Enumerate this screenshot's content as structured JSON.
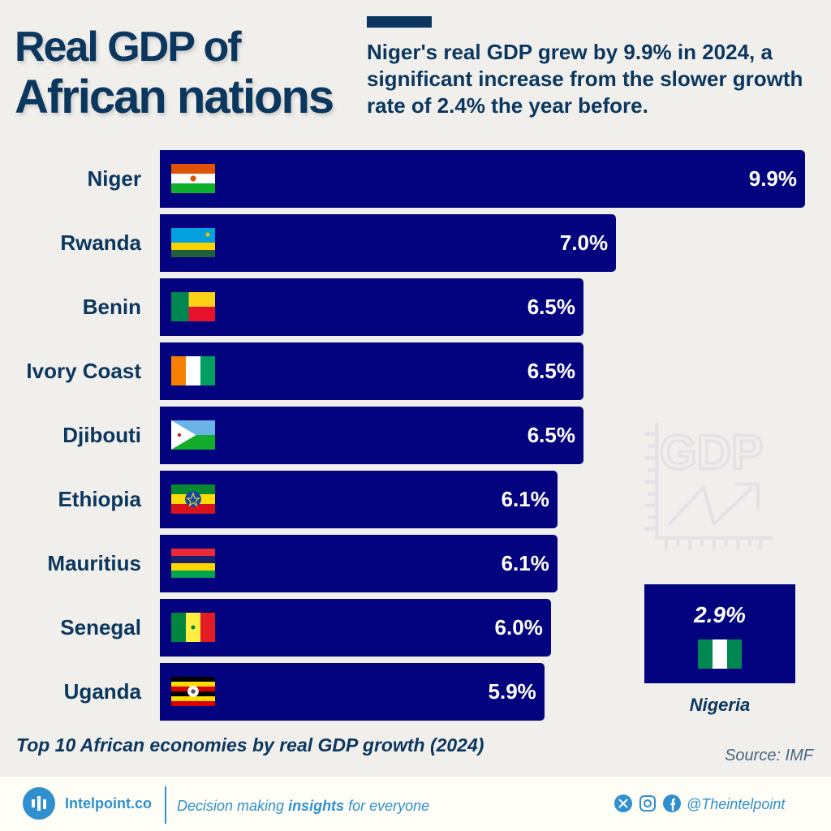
{
  "header": {
    "title_line1": "Real GDP of",
    "title_line2": "African nations",
    "subtitle": "Niger's real GDP grew by 9.9% in 2024, a significant increase from the slower growth rate of 2.4% the year before."
  },
  "chart_data": {
    "type": "bar",
    "orientation": "horizontal",
    "categories": [
      "Niger",
      "Rwanda",
      "Benin",
      "Ivory Coast",
      "Djibouti",
      "Ethiopia",
      "Mauritius",
      "Senegal",
      "Uganda"
    ],
    "values": [
      9.9,
      7.0,
      6.5,
      6.5,
      6.5,
      6.1,
      6.1,
      6.0,
      5.9
    ],
    "labels": [
      "9.9%",
      "7.0%",
      "6.5%",
      "6.5%",
      "6.5%",
      "6.1%",
      "6.1%",
      "6.0%",
      "5.9%"
    ],
    "xlim": [
      0,
      9.9
    ],
    "bar_color": "#03037f",
    "caption": "Top 10 African economies by real GDP growth (2024)",
    "highlight": {
      "country": "Nigeria",
      "value": 2.9,
      "label": "2.9%"
    }
  },
  "watermark_icon": "gdp-growth-chart-icon",
  "source": "Source: IMF",
  "footer": {
    "brand": "Intelpoint.co",
    "tagline_pre": "Decision making ",
    "tagline_bold": "insights",
    "tagline_post": " for everyone",
    "handle": "@Theintelpoint",
    "accent": "#2f8fcf",
    "social_icons": [
      "x-icon",
      "instagram-icon",
      "facebook-icon"
    ]
  }
}
